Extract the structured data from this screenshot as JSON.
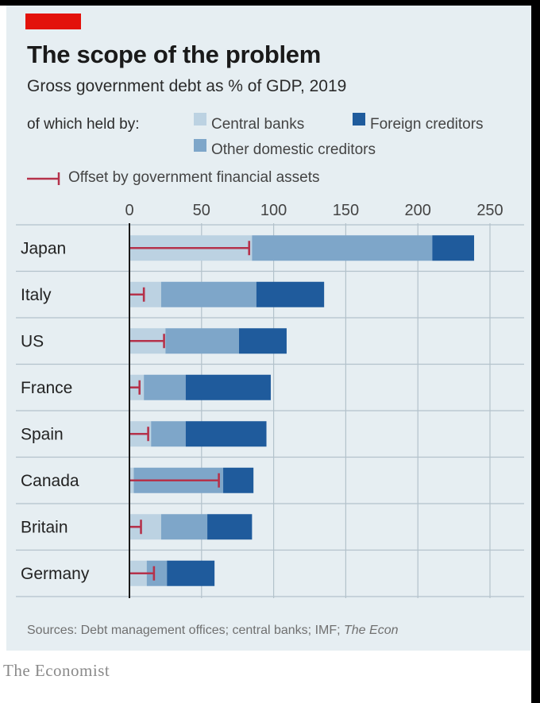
{
  "header": {
    "title": "The scope of the problem",
    "subtitle": "Gross government debt as % of GDP, 2019",
    "legend_lead": "of which held by:"
  },
  "legend": {
    "central_banks": "Central banks",
    "foreign_creditors": "Foreign creditors",
    "other_domestic": "Other domestic creditors",
    "offset": "Offset by government financial assets"
  },
  "colors": {
    "background": "#e6eef2",
    "central_banks": "#bcd2e2",
    "other_domestic": "#7ea6c9",
    "foreign_creditors": "#1f5b9c",
    "offset": "#b5324b",
    "gridline": "#b3c2cb",
    "brand_red": "#e3120b"
  },
  "chart_data": {
    "type": "bar",
    "orientation": "horizontal",
    "stacked": true,
    "title": "The scope of the problem",
    "subtitle": "Gross government debt as % of GDP, 2019",
    "xlim": [
      0,
      250
    ],
    "xticks": [
      "0",
      "50",
      "100",
      "150",
      "200",
      "250"
    ],
    "categories": [
      "Japan",
      "Italy",
      "US",
      "France",
      "Spain",
      "Canada",
      "Britain",
      "Germany"
    ],
    "series": [
      {
        "name": "Central banks",
        "values": [
          85,
          22,
          25,
          10,
          15,
          3,
          22,
          12
        ]
      },
      {
        "name": "Other domestic creditors",
        "values": [
          125,
          66,
          51,
          29,
          24,
          62,
          32,
          14
        ]
      },
      {
        "name": "Foreign creditors",
        "values": [
          29,
          47,
          33,
          59,
          56,
          21,
          31,
          33
        ]
      }
    ],
    "offset": {
      "name": "Offset by government financial assets",
      "values": [
        83,
        10,
        24,
        7,
        13,
        62,
        8,
        17
      ]
    }
  },
  "footer": {
    "sources": "Sources: Debt management offices; central banks; IMF; ",
    "sources_em": "The Econ",
    "brand": "The Economist"
  }
}
